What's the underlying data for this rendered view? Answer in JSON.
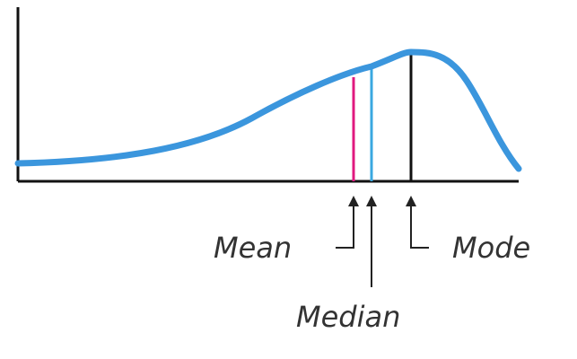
{
  "labels": {
    "mean": "Mean",
    "median": "Median",
    "mode": "Mode"
  },
  "colors": {
    "curve": "#3b96dd",
    "mean_line": "#e0197f",
    "median_line": "#3aa8e0",
    "mode_line": "#111111",
    "axes": "#111111",
    "text": "#333333"
  }
}
